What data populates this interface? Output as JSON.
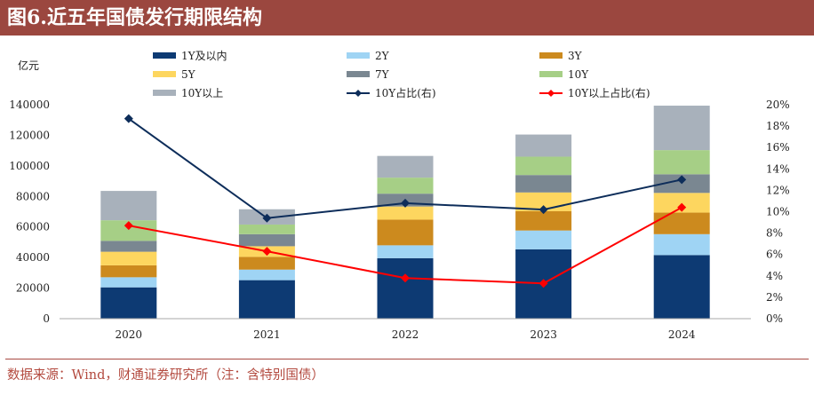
{
  "title": "图6.近五年国债发行期限结构",
  "source_note": "数据来源：Wind，财通证券研究所（注：含特别国债）",
  "chart_data": {
    "type": "bar",
    "stacked": true,
    "title": "图6.近五年国债发行期限结构",
    "y_left_label": "亿元",
    "categories": [
      "2020",
      "2021",
      "2022",
      "2023",
      "2024"
    ],
    "y_left": {
      "min": 0,
      "max": 140000,
      "ticks": [
        "0",
        "20000",
        "40000",
        "60000",
        "80000",
        "100000",
        "120000",
        "140000"
      ]
    },
    "y_right": {
      "min": 0,
      "max": 20,
      "ticks": [
        "0%",
        "2%",
        "4%",
        "6%",
        "8%",
        "10%",
        "12%",
        "14%",
        "16%",
        "18%",
        "20%"
      ]
    },
    "grid": false,
    "legend_position": "top",
    "series": [
      {
        "name": "1Y及以内",
        "kind": "bar",
        "color": "#0d3a73",
        "values": [
          20500,
          25200,
          39600,
          45400,
          41600
        ]
      },
      {
        "name": "2Y",
        "kind": "bar",
        "color": "#9fd4f4",
        "values": [
          6600,
          6900,
          8400,
          12300,
          13700
        ]
      },
      {
        "name": "3Y",
        "kind": "bar",
        "color": "#cc8a1e",
        "values": [
          7800,
          8300,
          16800,
          12600,
          14100
        ]
      },
      {
        "name": "5Y",
        "kind": "bar",
        "color": "#fdd65f",
        "values": [
          8900,
          7000,
          8600,
          12300,
          12900
        ]
      },
      {
        "name": "7Y",
        "kind": "bar",
        "color": "#7a8791",
        "values": [
          7100,
          7900,
          8400,
          11400,
          12200
        ]
      },
      {
        "name": "10Y",
        "kind": "bar",
        "color": "#a6cf86",
        "values": [
          13500,
          6300,
          10500,
          12000,
          15800
        ]
      },
      {
        "name": "10Y以上",
        "kind": "bar",
        "color": "#a8b1bb",
        "values": [
          19200,
          10000,
          14200,
          14500,
          29100
        ]
      },
      {
        "name": "10Y占比(右)",
        "kind": "line",
        "axis": "right",
        "color": "#0d2d5a",
        "marker": "diamond",
        "values": [
          18.7,
          9.4,
          10.8,
          10.2,
          13.0
        ]
      },
      {
        "name": "10Y以上占比(右)",
        "kind": "line",
        "axis": "right",
        "color": "#ff0000",
        "marker": "diamond",
        "values": [
          8.7,
          6.3,
          3.8,
          3.3,
          10.4
        ]
      }
    ]
  }
}
